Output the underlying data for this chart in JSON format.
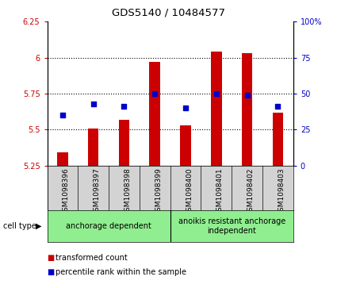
{
  "title": "GDS5140 / 10484577",
  "samples": [
    "GSM1098396",
    "GSM1098397",
    "GSM1098398",
    "GSM1098399",
    "GSM1098400",
    "GSM1098401",
    "GSM1098402",
    "GSM1098403"
  ],
  "bar_values": [
    5.34,
    5.51,
    5.57,
    5.97,
    5.53,
    6.04,
    6.03,
    5.62
  ],
  "dot_values": [
    35,
    43,
    41,
    50,
    40,
    50,
    49,
    41
  ],
  "ylim_left": [
    5.25,
    6.25
  ],
  "ylim_right": [
    0,
    100
  ],
  "yticks_left": [
    5.25,
    5.5,
    5.75,
    6.0,
    6.25
  ],
  "yticks_right": [
    0,
    25,
    50,
    75,
    100
  ],
  "ytick_labels_left": [
    "5.25",
    "5.5",
    "5.75",
    "6",
    "6.25"
  ],
  "ytick_labels_right": [
    "0",
    "25",
    "50",
    "75",
    "100%"
  ],
  "bar_color": "#cc0000",
  "dot_color": "#0000cc",
  "bar_bottom": 5.25,
  "group1_label": "anchorage dependent",
  "group2_label": "anoikis resistant anchorage\nindependent",
  "group1_count": 4,
  "group2_count": 4,
  "cell_type_label": "cell type",
  "legend_bar_label": "transformed count",
  "legend_dot_label": "percentile rank within the sample",
  "grid_yticks": [
    5.5,
    5.75,
    6.0
  ],
  "plot_bg_color": "#ffffff",
  "group_bg_color": "#90EE90",
  "tick_area_color": "#d3d3d3"
}
